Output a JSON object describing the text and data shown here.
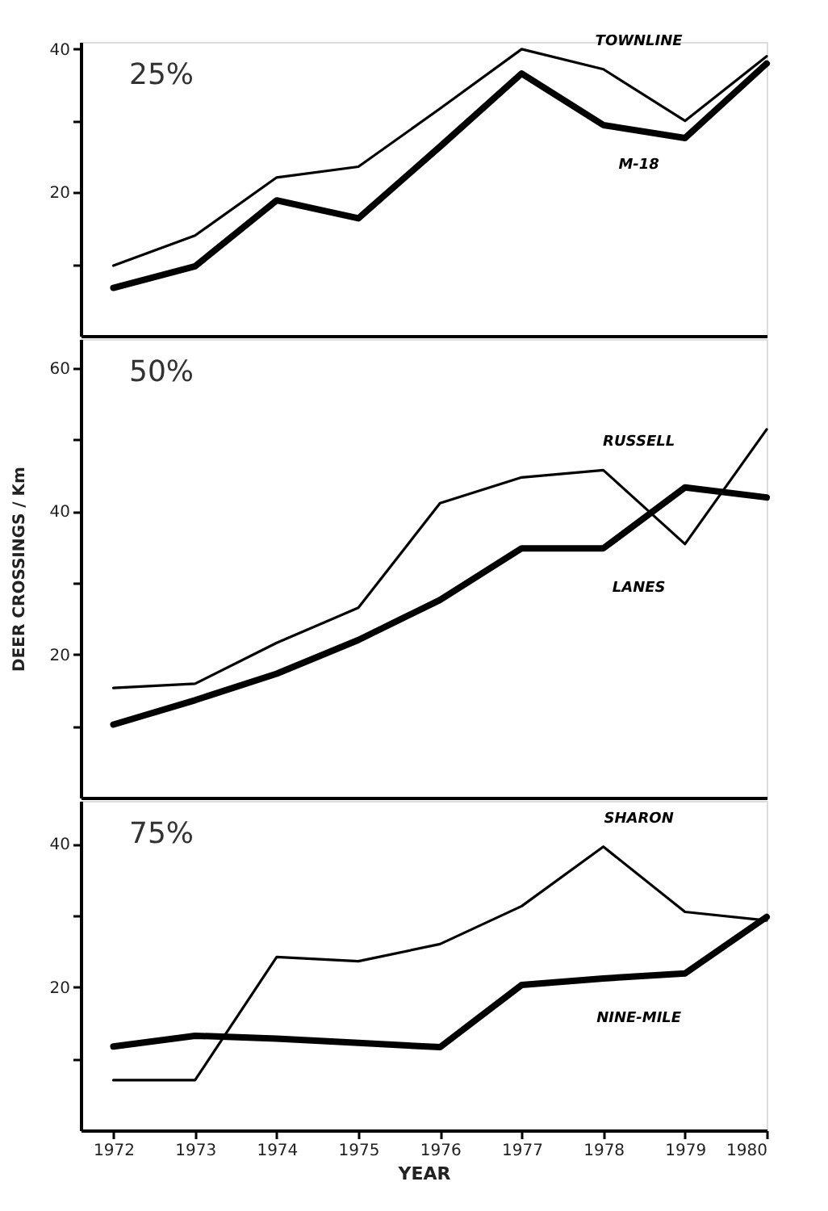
{
  "chart_data": [
    {
      "type": "line",
      "annotations": [
        "25%"
      ],
      "x": [
        1972,
        1973,
        1974,
        1975,
        1976,
        1977,
        1978,
        1979,
        1980
      ],
      "xlim": [
        1971.6,
        1980
      ],
      "xticks": [
        1972,
        1973,
        1974,
        1975,
        1976,
        1977,
        1978,
        1979,
        1980
      ],
      "ylim": [
        0,
        41
      ],
      "yticks": [
        {
          "value": 10,
          "label": null
        },
        20,
        {
          "value": 30,
          "label": null
        },
        40
      ],
      "tick_labels": "y",
      "grid": false,
      "legend": false,
      "series": [
        {
          "name": "TOWNLINE",
          "color": "#000000",
          "values": [
            9.8,
            14,
            22.1,
            23.6,
            31.7,
            40,
            37.2,
            30,
            39
          ]
        },
        {
          "name": "M-18",
          "color": "#000000",
          "values": [
            6.7,
            9.7,
            18.9,
            16.4,
            26.4,
            36.6,
            29.4,
            27.6,
            38
          ]
        }
      ]
    },
    {
      "type": "line",
      "annotations": [
        "50%"
      ],
      "ylabel": "DEER CROSSINGS / Km",
      "x": [
        1972,
        1973,
        1974,
        1975,
        1976,
        1977,
        1978,
        1979,
        1980
      ],
      "xlim": [
        1971.6,
        1980
      ],
      "xticks": [
        1972,
        1973,
        1974,
        1975,
        1976,
        1977,
        1978,
        1979,
        1980
      ],
      "ylim": [
        0,
        64
      ],
      "yticks": [
        {
          "value": 10,
          "label": null
        },
        20,
        {
          "value": 30,
          "label": null
        },
        40,
        {
          "value": 50,
          "label": null
        },
        60
      ],
      "tick_labels": "y",
      "grid": false,
      "legend": false,
      "series": [
        {
          "name": "RUSSELL",
          "color": "#000000",
          "values": [
            15.3,
            15.9,
            21.6,
            26.5,
            41.1,
            44.7,
            45.7,
            35.4,
            51.4
          ]
        },
        {
          "name": "LANES",
          "color": "#000000",
          "values": [
            10.2,
            13.6,
            17.3,
            22,
            27.6,
            34.8,
            34.8,
            43.3,
            41.9
          ]
        }
      ]
    },
    {
      "type": "line",
      "annotations": [
        "75%"
      ],
      "xlabel": "YEAR",
      "x": [
        1972,
        1973,
        1974,
        1975,
        1976,
        1977,
        1978,
        1979,
        1980
      ],
      "xlim": [
        1971.6,
        1980
      ],
      "xticks": [
        1972,
        1973,
        1974,
        1975,
        1976,
        1977,
        1978,
        1979,
        1980
      ],
      "ylim": [
        0,
        46
      ],
      "yticks": [
        {
          "value": 10,
          "label": null
        },
        20,
        {
          "value": 30,
          "label": null
        },
        40
      ],
      "grid": false,
      "legend": false,
      "series": [
        {
          "name": "SHARON",
          "color": "#000000",
          "values": [
            7,
            7,
            24.2,
            23.6,
            26,
            31.3,
            39.6,
            30.5,
            29.3
          ]
        },
        {
          "name": "NINE-MILE",
          "color": "#000000",
          "values": [
            11.7,
            13.2,
            12.8,
            12.2,
            11.6,
            20.3,
            21.2,
            21.9,
            29.8
          ]
        }
      ]
    }
  ]
}
